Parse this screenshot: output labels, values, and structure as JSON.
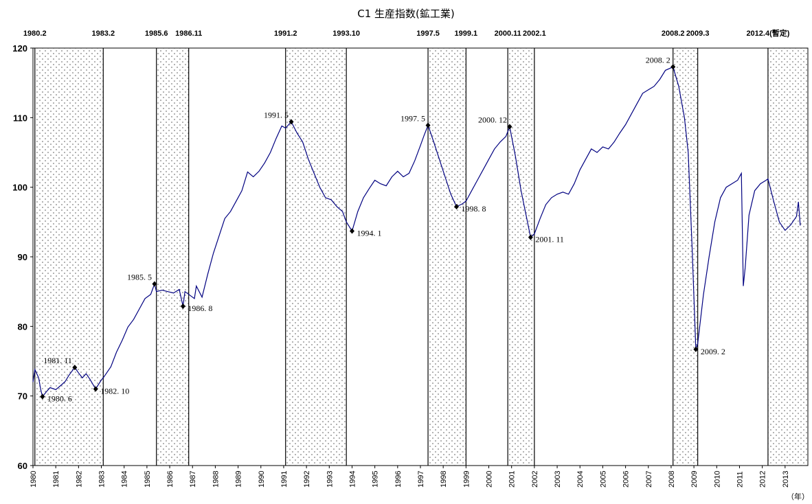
{
  "chart_data": {
    "type": "line",
    "title": "C1 生産指数(鉱工業)",
    "x_unit_label": "（年）",
    "ylim": [
      60,
      120
    ],
    "y_ticks": [
      60,
      70,
      80,
      90,
      100,
      110,
      120
    ],
    "x_range": [
      "1980.1",
      "2013.12"
    ],
    "x_tick_labels": [
      "1980",
      "1981",
      "1982",
      "1983",
      "1984",
      "1985",
      "1986",
      "1987",
      "1988",
      "1989",
      "1990",
      "1991",
      "1992",
      "1993",
      "1994",
      "1995",
      "1996",
      "1997",
      "1998",
      "1999",
      "2000",
      "2001",
      "2002",
      "2003",
      "2004",
      "2005",
      "2006",
      "2007",
      "2008",
      "2009",
      "2010",
      "2011",
      "2012",
      "2013"
    ],
    "grid": false,
    "line_color": "#000080",
    "shade_pattern": "dotted",
    "recession_shading": [
      {
        "start": "1980.2",
        "end": "1983.2"
      },
      {
        "start": "1985.6",
        "end": "1986.11"
      },
      {
        "start": "1991.2",
        "end": "1993.10"
      },
      {
        "start": "1997.5",
        "end": "1999.1"
      },
      {
        "start": "2000.11",
        "end": "2002.1"
      },
      {
        "start": "2008.2",
        "end": "2009.3"
      },
      {
        "start": "2012.4",
        "end": ""
      }
    ],
    "phase_labels": [
      {
        "text": "1980.2",
        "date": "1980.2"
      },
      {
        "text": "1983.2",
        "date": "1983.2"
      },
      {
        "text": "1985.6",
        "date": "1985.6"
      },
      {
        "text": "1986.11",
        "date": "1986.11"
      },
      {
        "text": "1991.2",
        "date": "1991.2"
      },
      {
        "text": "1993.10",
        "date": "1993.10"
      },
      {
        "text": "1997.5",
        "date": "1997.5"
      },
      {
        "text": "1999.1",
        "date": "1999.1"
      },
      {
        "text": "2000.11",
        "date": "2000.11"
      },
      {
        "text": "2002.1",
        "date": "2002.1"
      },
      {
        "text": "2008.2",
        "date": "2008.2"
      },
      {
        "text": "2009.3",
        "date": "2009.3"
      },
      {
        "text": "2012.4(暫定)",
        "date": "2012.4"
      }
    ],
    "turning_points": [
      {
        "label": "1980. 6",
        "date": "1980.6",
        "value": 69.9,
        "kind": "trough"
      },
      {
        "label": "1981. 11",
        "date": "1981.11",
        "value": 74.1,
        "kind": "peak"
      },
      {
        "label": "1982. 10",
        "date": "1982.10",
        "value": 71.0,
        "kind": "trough"
      },
      {
        "label": "1985. 5",
        "date": "1985.5",
        "value": 86.1,
        "kind": "peak"
      },
      {
        "label": "1986. 8",
        "date": "1986.8",
        "value": 82.9,
        "kind": "trough"
      },
      {
        "label": "1991. 5",
        "date": "1991.5",
        "value": 109.4,
        "kind": "peak"
      },
      {
        "label": "1994. 1",
        "date": "1994.1",
        "value": 93.7,
        "kind": "trough"
      },
      {
        "label": "1997. 5",
        "date": "1997.5",
        "value": 108.9,
        "kind": "peak"
      },
      {
        "label": "1998. 8",
        "date": "1998.8",
        "value": 97.2,
        "kind": "trough"
      },
      {
        "label": "2000. 12",
        "date": "2000.12",
        "value": 108.7,
        "kind": "peak"
      },
      {
        "label": "2001. 11",
        "date": "2001.11",
        "value": 92.8,
        "kind": "trough"
      },
      {
        "label": "2008. 2",
        "date": "2008.2",
        "value": 117.3,
        "kind": "peak"
      },
      {
        "label": "2009. 2",
        "date": "2009.2",
        "value": 76.7,
        "kind": "trough"
      }
    ],
    "series": [
      {
        "values": [
          {
            "date": "1980.1",
            "value": 72.0
          },
          {
            "date": "1980.2",
            "value": 73.8
          },
          {
            "date": "1980.4",
            "value": 72.6
          },
          {
            "date": "1980.5",
            "value": 71.0
          },
          {
            "date": "1980.6",
            "value": 69.9
          },
          {
            "date": "1980.8",
            "value": 70.6
          },
          {
            "date": "1980.10",
            "value": 71.2
          },
          {
            "date": "1981.1",
            "value": 70.9
          },
          {
            "date": "1981.4",
            "value": 71.6
          },
          {
            "date": "1981.6",
            "value": 72.1
          },
          {
            "date": "1981.8",
            "value": 73.0
          },
          {
            "date": "1981.11",
            "value": 74.1
          },
          {
            "date": "1982.1",
            "value": 73.3
          },
          {
            "date": "1982.3",
            "value": 72.6
          },
          {
            "date": "1982.5",
            "value": 73.2
          },
          {
            "date": "1982.7",
            "value": 72.4
          },
          {
            "date": "1982.10",
            "value": 71.0
          },
          {
            "date": "1983.1",
            "value": 72.3
          },
          {
            "date": "1983.2",
            "value": 72.6
          },
          {
            "date": "1983.6",
            "value": 74.2
          },
          {
            "date": "1983.9",
            "value": 76.3
          },
          {
            "date": "1983.12",
            "value": 78.0
          },
          {
            "date": "1984.3",
            "value": 79.9
          },
          {
            "date": "1984.6",
            "value": 81.0
          },
          {
            "date": "1984.9",
            "value": 82.5
          },
          {
            "date": "1984.12",
            "value": 84.0
          },
          {
            "date": "1985.3",
            "value": 84.6
          },
          {
            "date": "1985.5",
            "value": 86.1
          },
          {
            "date": "1985.6",
            "value": 85.0
          },
          {
            "date": "1985.9",
            "value": 85.2
          },
          {
            "date": "1985.12",
            "value": 85.0
          },
          {
            "date": "1986.3",
            "value": 84.8
          },
          {
            "date": "1986.6",
            "value": 85.3
          },
          {
            "date": "1986.8",
            "value": 82.9
          },
          {
            "date": "1986.9",
            "value": 85.0
          },
          {
            "date": "1986.11",
            "value": 84.6
          },
          {
            "date": "1987.2",
            "value": 84.0
          },
          {
            "date": "1987.3",
            "value": 85.8
          },
          {
            "date": "1987.6",
            "value": 84.2
          },
          {
            "date": "1987.9",
            "value": 87.5
          },
          {
            "date": "1987.12",
            "value": 90.5
          },
          {
            "date": "1988.3",
            "value": 93.0
          },
          {
            "date": "1988.6",
            "value": 95.5
          },
          {
            "date": "1988.9",
            "value": 96.5
          },
          {
            "date": "1988.12",
            "value": 98.0
          },
          {
            "date": "1989.3",
            "value": 99.5
          },
          {
            "date": "1989.6",
            "value": 102.2
          },
          {
            "date": "1989.9",
            "value": 101.5
          },
          {
            "date": "1989.12",
            "value": 102.3
          },
          {
            "date": "1990.3",
            "value": 103.5
          },
          {
            "date": "1990.6",
            "value": 105.0
          },
          {
            "date": "1990.9",
            "value": 107.0
          },
          {
            "date": "1990.12",
            "value": 108.8
          },
          {
            "date": "1991.2",
            "value": 108.5
          },
          {
            "date": "1991.5",
            "value": 109.4
          },
          {
            "date": "1991.8",
            "value": 107.8
          },
          {
            "date": "1991.11",
            "value": 106.5
          },
          {
            "date": "1992.2",
            "value": 104.0
          },
          {
            "date": "1992.5",
            "value": 102.0
          },
          {
            "date": "1992.8",
            "value": 100.0
          },
          {
            "date": "1992.11",
            "value": 98.5
          },
          {
            "date": "1993.2",
            "value": 98.2
          },
          {
            "date": "1993.5",
            "value": 97.2
          },
          {
            "date": "1993.8",
            "value": 96.5
          },
          {
            "date": "1993.10",
            "value": 95.0
          },
          {
            "date": "1994.1",
            "value": 93.7
          },
          {
            "date": "1994.4",
            "value": 96.5
          },
          {
            "date": "1994.7",
            "value": 98.5
          },
          {
            "date": "1994.10",
            "value": 99.8
          },
          {
            "date": "1995.1",
            "value": 101.0
          },
          {
            "date": "1995.4",
            "value": 100.5
          },
          {
            "date": "1995.7",
            "value": 100.2
          },
          {
            "date": "1995.10",
            "value": 101.5
          },
          {
            "date": "1996.1",
            "value": 102.3
          },
          {
            "date": "1996.4",
            "value": 101.5
          },
          {
            "date": "1996.7",
            "value": 102.0
          },
          {
            "date": "1996.10",
            "value": 103.8
          },
          {
            "date": "1997.1",
            "value": 106.0
          },
          {
            "date": "1997.3",
            "value": 107.5
          },
          {
            "date": "1997.5",
            "value": 108.9
          },
          {
            "date": "1997.8",
            "value": 106.5
          },
          {
            "date": "1997.11",
            "value": 104.0
          },
          {
            "date": "1998.2",
            "value": 101.5
          },
          {
            "date": "1998.5",
            "value": 99.0
          },
          {
            "date": "1998.8",
            "value": 97.2
          },
          {
            "date": "1998.11",
            "value": 97.6
          },
          {
            "date": "1999.1",
            "value": 98.0
          },
          {
            "date": "1999.4",
            "value": 99.5
          },
          {
            "date": "1999.7",
            "value": 101.0
          },
          {
            "date": "1999.10",
            "value": 102.5
          },
          {
            "date": "2000.1",
            "value": 104.0
          },
          {
            "date": "2000.4",
            "value": 105.5
          },
          {
            "date": "2000.7",
            "value": 106.5
          },
          {
            "date": "2000.10",
            "value": 107.3
          },
          {
            "date": "2000.12",
            "value": 108.7
          },
          {
            "date": "2001.3",
            "value": 104.5
          },
          {
            "date": "2001.6",
            "value": 99.5
          },
          {
            "date": "2001.9",
            "value": 95.5
          },
          {
            "date": "2001.11",
            "value": 92.8
          },
          {
            "date": "2002.1",
            "value": 93.3
          },
          {
            "date": "2002.4",
            "value": 95.5
          },
          {
            "date": "2002.7",
            "value": 97.5
          },
          {
            "date": "2002.10",
            "value": 98.5
          },
          {
            "date": "2003.1",
            "value": 99.0
          },
          {
            "date": "2003.4",
            "value": 99.3
          },
          {
            "date": "2003.7",
            "value": 99.0
          },
          {
            "date": "2003.10",
            "value": 100.5
          },
          {
            "date": "2004.1",
            "value": 102.5
          },
          {
            "date": "2004.4",
            "value": 104.0
          },
          {
            "date": "2004.7",
            "value": 105.5
          },
          {
            "date": "2004.10",
            "value": 105.0
          },
          {
            "date": "2005.1",
            "value": 105.8
          },
          {
            "date": "2005.4",
            "value": 105.5
          },
          {
            "date": "2005.7",
            "value": 106.5
          },
          {
            "date": "2005.10",
            "value": 107.8
          },
          {
            "date": "2006.1",
            "value": 109.0
          },
          {
            "date": "2006.4",
            "value": 110.5
          },
          {
            "date": "2006.7",
            "value": 112.0
          },
          {
            "date": "2006.10",
            "value": 113.5
          },
          {
            "date": "2007.1",
            "value": 114.0
          },
          {
            "date": "2007.4",
            "value": 114.5
          },
          {
            "date": "2007.7",
            "value": 115.5
          },
          {
            "date": "2007.10",
            "value": 116.8
          },
          {
            "date": "2008.2",
            "value": 117.3
          },
          {
            "date": "2008.5",
            "value": 114.5
          },
          {
            "date": "2008.8",
            "value": 110.0
          },
          {
            "date": "2008.10",
            "value": 105.0
          },
          {
            "date": "2008.12",
            "value": 91.5
          },
          {
            "date": "2009.2",
            "value": 76.7
          },
          {
            "date": "2009.3",
            "value": 77.5
          },
          {
            "date": "2009.6",
            "value": 84.5
          },
          {
            "date": "2009.9",
            "value": 90.0
          },
          {
            "date": "2009.12",
            "value": 95.0
          },
          {
            "date": "2010.3",
            "value": 98.5
          },
          {
            "date": "2010.6",
            "value": 100.0
          },
          {
            "date": "2010.9",
            "value": 100.5
          },
          {
            "date": "2010.12",
            "value": 101.0
          },
          {
            "date": "2011.2",
            "value": 102.0
          },
          {
            "date": "2011.3",
            "value": 85.8
          },
          {
            "date": "2011.4",
            "value": 88.5
          },
          {
            "date": "2011.6",
            "value": 96.0
          },
          {
            "date": "2011.9",
            "value": 99.5
          },
          {
            "date": "2011.12",
            "value": 100.5
          },
          {
            "date": "2012.3",
            "value": 101.0
          },
          {
            "date": "2012.4",
            "value": 101.2
          },
          {
            "date": "2012.7",
            "value": 98.0
          },
          {
            "date": "2012.10",
            "value": 95.0
          },
          {
            "date": "2013.1",
            "value": 93.8
          },
          {
            "date": "2013.4",
            "value": 94.6
          },
          {
            "date": "2013.7",
            "value": 95.8
          },
          {
            "date": "2013.8",
            "value": 97.9
          },
          {
            "date": "2013.9",
            "value": 94.5
          }
        ]
      }
    ]
  }
}
